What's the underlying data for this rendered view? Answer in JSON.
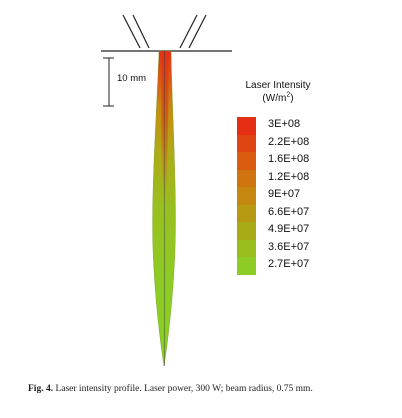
{
  "figure": {
    "scale_label": "10 mm",
    "legend": {
      "title_line1": "Laser Intensity",
      "title_unit_base": "(W/m",
      "title_unit_exp": "2",
      "title_unit_close": ")",
      "entries": [
        {
          "label": "3E+08",
          "color": "#e52e14"
        },
        {
          "label": "2.2E+08",
          "color": "#df4512"
        },
        {
          "label": "1.6E+08",
          "color": "#d95c10"
        },
        {
          "label": "1.2E+08",
          "color": "#d07410"
        },
        {
          "label": "9E+07",
          "color": "#c5870f"
        },
        {
          "label": "6.6E+07",
          "color": "#b89a12"
        },
        {
          "label": "4.9E+07",
          "color": "#a9ab16"
        },
        {
          "label": "3.6E+07",
          "color": "#99bd1c"
        },
        {
          "label": "2.7E+07",
          "color": "#8dcc24"
        }
      ]
    }
  },
  "caption": {
    "label": "Fig. 4.",
    "text": "Laser intensity profile. Laser power, 300 W; beam radius, 0.75 mm."
  }
}
